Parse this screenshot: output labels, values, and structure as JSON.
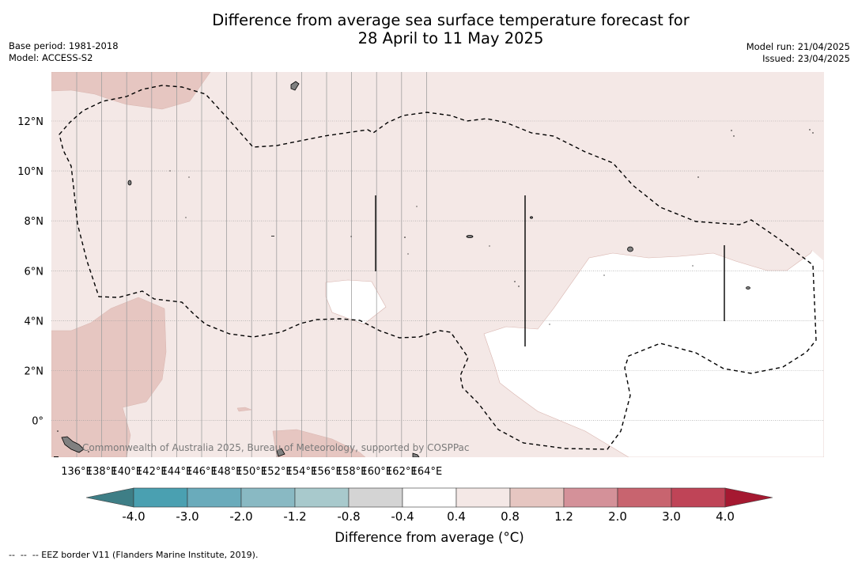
{
  "title": {
    "line1": "Difference from average sea surface temperature forecast for",
    "line2": "28 April to 11 May 2025"
  },
  "meta_left": {
    "base_period": "Base period: 1981-2018",
    "model": "Model: ACCESS-S2"
  },
  "meta_right": {
    "model_run": "Model run: 21/04/2025",
    "issued": "Issued: 23/04/2025"
  },
  "map": {
    "lat_labels": [
      "12°N",
      "10°N",
      "8°N",
      "6°N",
      "4°N",
      "2°N",
      "0°"
    ],
    "lon_labels": [
      "136°E",
      "138°E",
      "140°E",
      "142°E",
      "144°E",
      "146°E",
      "148°E",
      "150°E",
      "152°E",
      "154°E",
      "156°E",
      "158°E",
      "160°E",
      "162°E",
      "164°E"
    ],
    "watermark": "Commonwealth of Australia 2025, Bureau of Meteorology, supported by COSPPac",
    "fill_colors": {
      "band_0_4_to_0_8": "#f4e8e6",
      "band_0_8_to_1_2": "#e6c6c1",
      "band_neg0_4_to_0_4": "#ffffff",
      "eez_line": "#000000",
      "land": "#808080"
    }
  },
  "colorbar": {
    "labels": [
      "-4.0",
      "-3.0",
      "-2.0",
      "-1.2",
      "-0.8",
      "-0.4",
      "0.4",
      "0.8",
      "1.2",
      "2.0",
      "3.0",
      "4.0"
    ],
    "colors": [
      "#3e7e86",
      "#4aa0b1",
      "#6aabbb",
      "#89b9c3",
      "#a8c9cc",
      "#d4d4d4",
      "#ffffff",
      "#f4e8e6",
      "#e6c6c1",
      "#d49199",
      "#c8646f",
      "#bf4457",
      "#a51931"
    ],
    "title": "Difference from average (°C)"
  },
  "footnote": "--  --  -- EEZ border V11 (Flanders Marine Institute, 2019)."
}
